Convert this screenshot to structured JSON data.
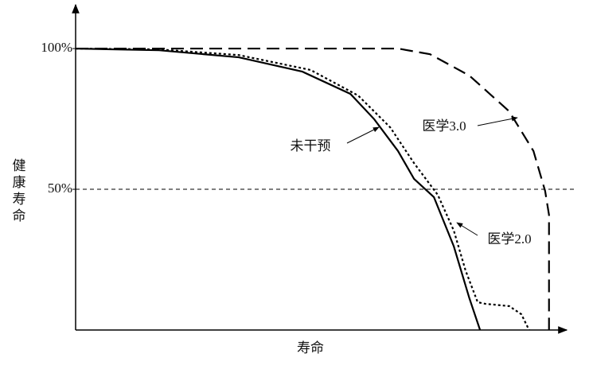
{
  "chart_data": {
    "type": "line",
    "x_label": "寿命",
    "y_label": "健康寿命",
    "xlim": [
      0,
      100
    ],
    "ylim": [
      0,
      115
    ],
    "yticks": [
      {
        "value": 100,
        "label": "100%"
      },
      {
        "value": 50,
        "label": "50%"
      }
    ],
    "hline": 50,
    "series": [
      {
        "name": "未干预",
        "color": "#000000",
        "style": "solid",
        "x": [
          0,
          17.2,
          33.6,
          46.7,
          56.6,
          61.5,
          66.4,
          69.7,
          73.8,
          77.9,
          81.1,
          83.3
        ],
        "values": [
          100,
          99.4,
          96.9,
          91.8,
          83.9,
          74.9,
          63.6,
          53.7,
          47.2,
          29.7,
          11.3,
          0
        ]
      },
      {
        "name": "医学2.0",
        "color": "#000000",
        "style": "dotted",
        "x": [
          0,
          17.2,
          33.6,
          48.4,
          58.2,
          64.8,
          69.7,
          74.6,
          77.9,
          80.3,
          82.8,
          84.4,
          89.3,
          91.8,
          93.4
        ],
        "values": [
          100,
          99.7,
          97.7,
          92.4,
          83.3,
          72.0,
          59.3,
          48.0,
          35.3,
          21.2,
          9.9,
          9.3,
          8.5,
          5.6,
          0
        ]
      },
      {
        "name": "医学3.0",
        "color": "#000000",
        "style": "dashed",
        "x": [
          0,
          66.4,
          73.0,
          81.1,
          89.3,
          94.3,
          96.7,
          97.5,
          97.5
        ],
        "values": [
          100,
          100,
          98.0,
          90.4,
          77.7,
          63.6,
          49.4,
          40.9,
          0
        ]
      }
    ]
  }
}
